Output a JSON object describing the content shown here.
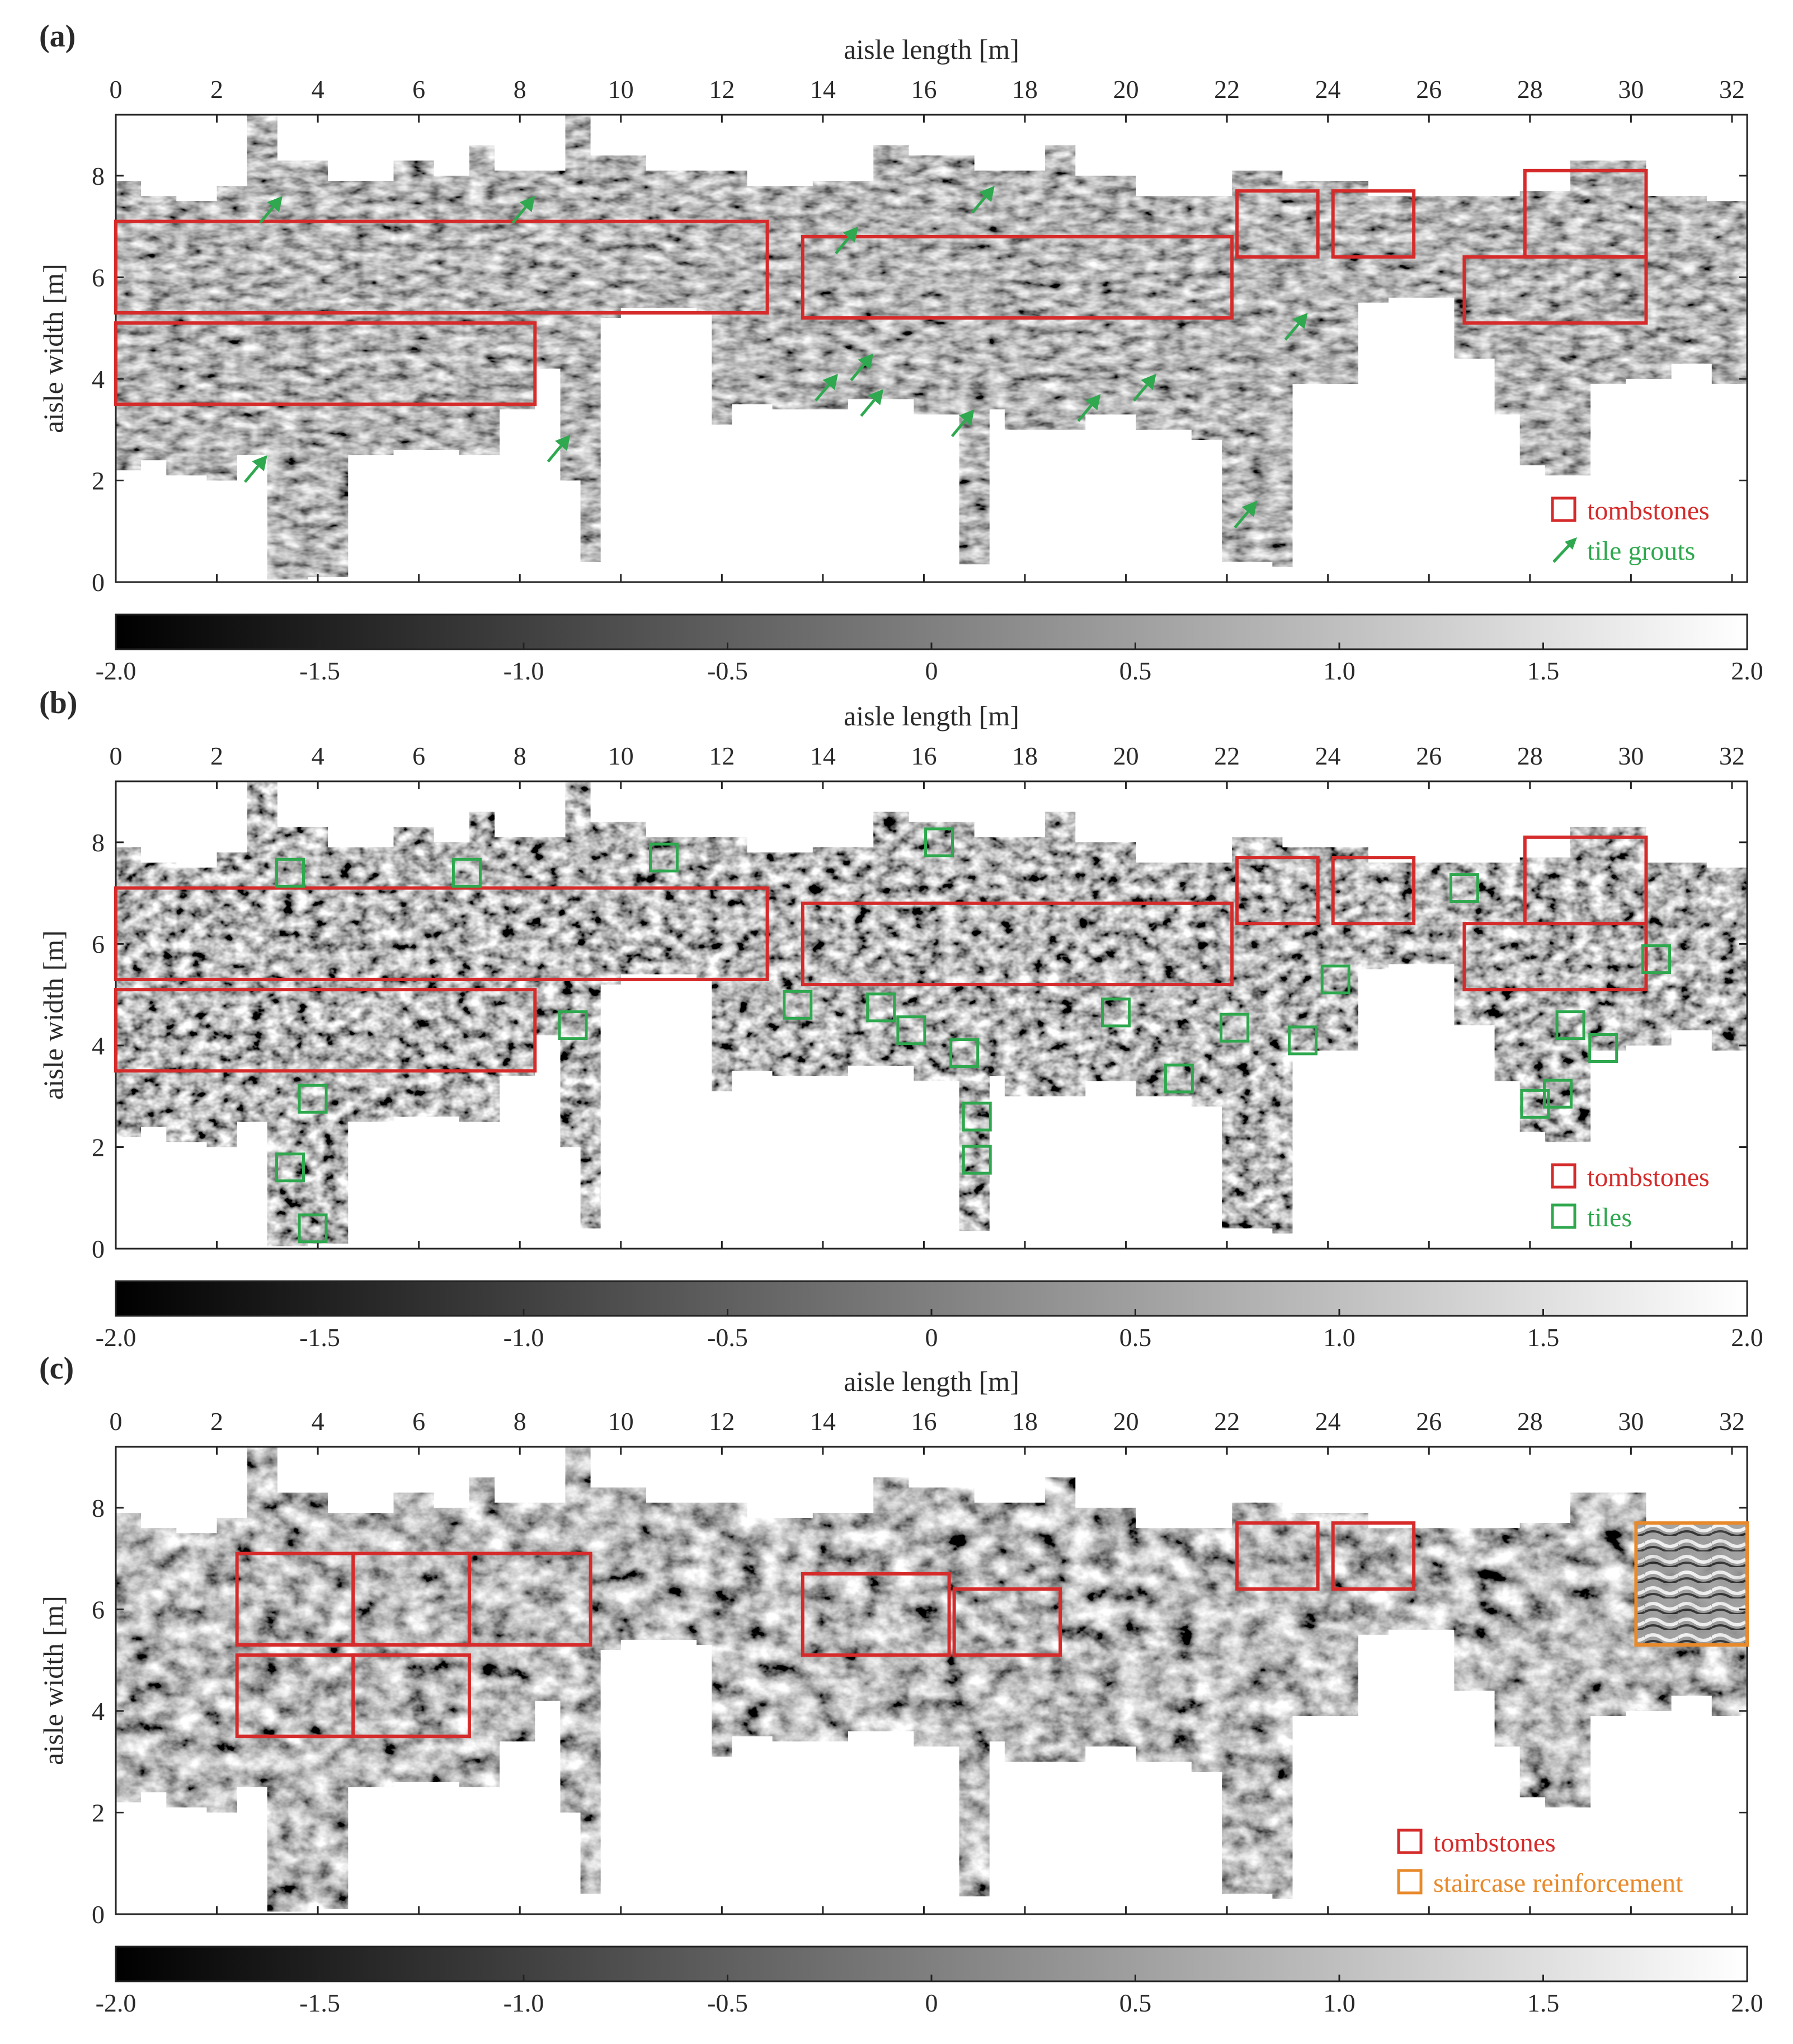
{
  "chart_data": [
    {
      "type": "heatmap",
      "panel_label": "(a)",
      "xlabel": "aisle length [m]",
      "ylabel": "aisle width [m]",
      "xlim": [
        0,
        32.3
      ],
      "ylim": [
        0,
        9.2
      ],
      "x_ticks": [
        0,
        2,
        4,
        6,
        8,
        10,
        12,
        14,
        16,
        18,
        20,
        22,
        24,
        26,
        28,
        30,
        32
      ],
      "y_ticks": [
        0,
        2,
        4,
        6,
        8
      ],
      "colorbar": {
        "min": -2.0,
        "max": 2.0,
        "ticks": [
          "-2.0",
          "-1.5",
          "-1.0",
          "-0.5",
          "0",
          "0.5",
          "1.0",
          "1.5",
          "2.0"
        ],
        "colormap": "gray"
      },
      "legend": [
        {
          "label": "tombstones",
          "symbol": "square",
          "color": "#d62b2b"
        },
        {
          "label": "tile grouts",
          "symbol": "arrow",
          "color": "#2fa84f"
        }
      ],
      "rectangles": [
        {
          "class": "tombstones",
          "x0": 0,
          "x1": 12.9,
          "y0": 5.3,
          "y1": 7.1
        },
        {
          "class": "tombstones",
          "x0": 0,
          "x1": 8.3,
          "y0": 3.5,
          "y1": 5.1
        },
        {
          "class": "tombstones",
          "x0": 13.6,
          "x1": 22.1,
          "y0": 5.2,
          "y1": 6.8
        },
        {
          "class": "tombstones",
          "x0": 22.2,
          "x1": 23.8,
          "y0": 6.4,
          "y1": 7.7
        },
        {
          "class": "tombstones",
          "x0": 24.1,
          "x1": 25.7,
          "y0": 6.4,
          "y1": 7.7
        },
        {
          "class": "tombstones",
          "x0": 27.9,
          "x1": 30.3,
          "y0": 6.4,
          "y1": 8.1
        },
        {
          "class": "tombstones",
          "x0": 26.7,
          "x1": 30.3,
          "y0": 5.1,
          "y1": 6.4
        }
      ],
      "arrows": [
        {
          "x": 3.3,
          "y": 7.6
        },
        {
          "x": 8.3,
          "y": 7.6
        },
        {
          "x": 14.7,
          "y": 7.0
        },
        {
          "x": 17.4,
          "y": 7.8
        },
        {
          "x": 15.0,
          "y": 4.5
        },
        {
          "x": 14.3,
          "y": 4.1
        },
        {
          "x": 15.2,
          "y": 3.8
        },
        {
          "x": 17.0,
          "y": 3.4
        },
        {
          "x": 19.5,
          "y": 3.7
        },
        {
          "x": 20.6,
          "y": 4.1
        },
        {
          "x": 23.6,
          "y": 5.3
        },
        {
          "x": 3.0,
          "y": 2.5
        },
        {
          "x": 9.0,
          "y": 2.9
        },
        {
          "x": 22.6,
          "y": 1.6
        }
      ]
    },
    {
      "type": "heatmap",
      "panel_label": "(b)",
      "xlabel": "aisle length [m]",
      "ylabel": "aisle width [m]",
      "xlim": [
        0,
        32.3
      ],
      "ylim": [
        0,
        9.2
      ],
      "x_ticks": [
        0,
        2,
        4,
        6,
        8,
        10,
        12,
        14,
        16,
        18,
        20,
        22,
        24,
        26,
        28,
        30,
        32
      ],
      "y_ticks": [
        0,
        2,
        4,
        6,
        8
      ],
      "colorbar": {
        "min": -2.0,
        "max": 2.0,
        "ticks": [
          "-2.0",
          "-1.5",
          "-1.0",
          "-0.5",
          "0",
          "0.5",
          "1.0",
          "1.5",
          "2.0"
        ],
        "colormap": "gray"
      },
      "legend": [
        {
          "label": "tombstones",
          "symbol": "square",
          "color": "#d62b2b"
        },
        {
          "label": "tiles",
          "symbol": "square",
          "color": "#2fa84f"
        }
      ],
      "rectangles": [
        {
          "class": "tombstones",
          "x0": 0,
          "x1": 12.9,
          "y0": 5.3,
          "y1": 7.1
        },
        {
          "class": "tombstones",
          "x0": 0,
          "x1": 8.3,
          "y0": 3.5,
          "y1": 5.1
        },
        {
          "class": "tombstones",
          "x0": 13.6,
          "x1": 22.1,
          "y0": 5.2,
          "y1": 6.8
        },
        {
          "class": "tombstones",
          "x0": 22.2,
          "x1": 23.8,
          "y0": 6.4,
          "y1": 7.7
        },
        {
          "class": "tombstones",
          "x0": 24.1,
          "x1": 25.7,
          "y0": 6.4,
          "y1": 7.7
        },
        {
          "class": "tombstones",
          "x0": 27.9,
          "x1": 30.3,
          "y0": 6.4,
          "y1": 8.1
        },
        {
          "class": "tombstones",
          "x0": 26.7,
          "x1": 30.3,
          "y0": 5.1,
          "y1": 6.4
        }
      ],
      "tiles": [
        {
          "x": 3.45,
          "y": 7.4
        },
        {
          "x": 6.95,
          "y": 7.4
        },
        {
          "x": 10.85,
          "y": 7.7
        },
        {
          "x": 16.3,
          "y": 8.0
        },
        {
          "x": 26.7,
          "y": 7.1
        },
        {
          "x": 24.15,
          "y": 5.3
        },
        {
          "x": 30.5,
          "y": 5.7
        },
        {
          "x": 9.05,
          "y": 4.4
        },
        {
          "x": 13.5,
          "y": 4.8
        },
        {
          "x": 15.15,
          "y": 4.75
        },
        {
          "x": 15.75,
          "y": 4.3
        },
        {
          "x": 16.8,
          "y": 3.85
        },
        {
          "x": 19.8,
          "y": 4.65
        },
        {
          "x": 22.15,
          "y": 4.35
        },
        {
          "x": 23.5,
          "y": 4.1
        },
        {
          "x": 21.05,
          "y": 3.35
        },
        {
          "x": 3.9,
          "y": 2.95
        },
        {
          "x": 3.45,
          "y": 1.6
        },
        {
          "x": 3.9,
          "y": 0.4
        },
        {
          "x": 17.05,
          "y": 2.6
        },
        {
          "x": 17.05,
          "y": 1.75
        },
        {
          "x": 28.8,
          "y": 4.4
        },
        {
          "x": 29.45,
          "y": 3.95
        },
        {
          "x": 28.1,
          "y": 2.85
        },
        {
          "x": 28.55,
          "y": 3.05
        }
      ]
    },
    {
      "type": "heatmap",
      "panel_label": "(c)",
      "xlabel": "aisle length [m]",
      "ylabel": "aisle width [m]",
      "xlim": [
        0,
        32.3
      ],
      "ylim": [
        0,
        9.2
      ],
      "x_ticks": [
        0,
        2,
        4,
        6,
        8,
        10,
        12,
        14,
        16,
        18,
        20,
        22,
        24,
        26,
        28,
        30,
        32
      ],
      "y_ticks": [
        0,
        2,
        4,
        6,
        8
      ],
      "colorbar": {
        "min": -2.0,
        "max": 2.0,
        "ticks": [
          "-2.0",
          "-1.5",
          "-1.0",
          "-0.5",
          "0",
          "0.5",
          "1.0",
          "1.5",
          "2.0"
        ],
        "colormap": "gray"
      },
      "legend": [
        {
          "label": "tombstones",
          "symbol": "square",
          "color": "#d62b2b"
        },
        {
          "label": "staircase reinforcement",
          "symbol": "square",
          "color": "#e8892a"
        }
      ],
      "rectangles": [
        {
          "class": "tombstones",
          "x0": 2.4,
          "x1": 4.7,
          "y0": 5.3,
          "y1": 7.1
        },
        {
          "class": "tombstones",
          "x0": 4.7,
          "x1": 7.0,
          "y0": 5.3,
          "y1": 7.1
        },
        {
          "class": "tombstones",
          "x0": 7.0,
          "x1": 9.4,
          "y0": 5.3,
          "y1": 7.1
        },
        {
          "class": "tombstones",
          "x0": 2.4,
          "x1": 4.7,
          "y0": 3.5,
          "y1": 5.1
        },
        {
          "class": "tombstones",
          "x0": 4.7,
          "x1": 7.0,
          "y0": 3.5,
          "y1": 5.1
        },
        {
          "class": "tombstones",
          "x0": 13.6,
          "x1": 16.5,
          "y0": 5.1,
          "y1": 6.7
        },
        {
          "class": "tombstones",
          "x0": 16.6,
          "x1": 18.7,
          "y0": 5.1,
          "y1": 6.4
        },
        {
          "class": "tombstones",
          "x0": 22.2,
          "x1": 23.8,
          "y0": 6.4,
          "y1": 7.7
        },
        {
          "class": "tombstones",
          "x0": 24.1,
          "x1": 25.7,
          "y0": 6.4,
          "y1": 7.7
        },
        {
          "class": "staircase reinforcement",
          "x0": 30.1,
          "x1": 32.3,
          "y0": 5.3,
          "y1": 7.7
        }
      ]
    }
  ]
}
